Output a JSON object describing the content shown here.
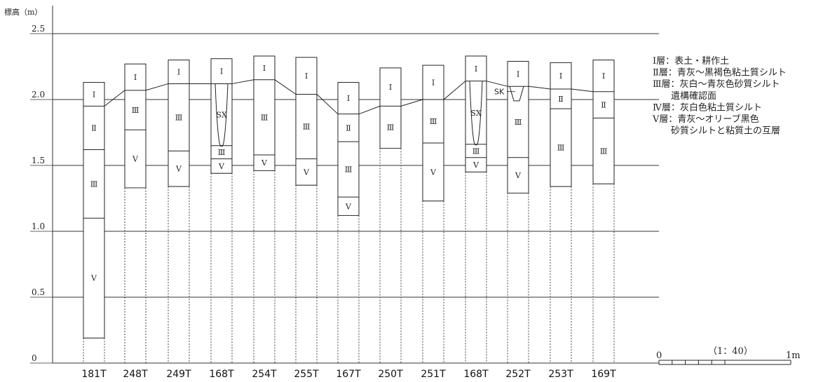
{
  "axis": {
    "label": "標高（m）",
    "ticks": [
      "2.5",
      "2.0",
      "1.5",
      "1.0",
      "0.5",
      "0"
    ]
  },
  "columns": [
    {
      "id": "181T",
      "top": 2.13,
      "bottom": 0.19,
      "layers": [
        {
          "label": "Ⅰ",
          "from": 2.13,
          "to": 1.95
        },
        {
          "label": "Ⅱ",
          "from": 1.95,
          "to": 1.62
        },
        {
          "label": "Ⅲ",
          "from": 1.62,
          "to": 1.1
        },
        {
          "label": "Ⅴ",
          "from": 1.1,
          "to": 0.19
        }
      ]
    },
    {
      "id": "248T",
      "top": 2.27,
      "bottom": 1.33,
      "layers": [
        {
          "label": "Ⅰ",
          "from": 2.27,
          "to": 2.07
        },
        {
          "label": "Ⅲ",
          "from": 2.07,
          "to": 1.77
        },
        {
          "label": "Ⅴ",
          "from": 1.77,
          "to": 1.33
        }
      ]
    },
    {
      "id": "249T",
      "top": 2.3,
      "bottom": 1.34,
      "layers": [
        {
          "label": "Ⅰ",
          "from": 2.3,
          "to": 2.12
        },
        {
          "label": "Ⅲ",
          "from": 2.12,
          "to": 1.61
        },
        {
          "label": "Ⅴ",
          "from": 1.61,
          "to": 1.34
        }
      ]
    },
    {
      "id": "168T",
      "top": 2.31,
      "bottom": 1.44,
      "layers": [
        {
          "label": "Ⅰ",
          "from": 2.31,
          "to": 2.12
        },
        {
          "label": "SX",
          "from": 2.12,
          "to": 1.65
        },
        {
          "label": "Ⅲ",
          "from": 1.65,
          "to": 1.55
        },
        {
          "label": "Ⅴ",
          "from": 1.55,
          "to": 1.44
        }
      ]
    },
    {
      "id": "254T",
      "top": 2.33,
      "bottom": 1.46,
      "layers": [
        {
          "label": "Ⅰ",
          "from": 2.33,
          "to": 2.15
        },
        {
          "label": "Ⅲ",
          "from": 2.15,
          "to": 1.58
        },
        {
          "label": "Ⅴ",
          "from": 1.58,
          "to": 1.46
        }
      ]
    },
    {
      "id": "255T",
      "top": 2.32,
      "bottom": 1.35,
      "layers": [
        {
          "label": "Ⅰ",
          "from": 2.32,
          "to": 2.04
        },
        {
          "label": "Ⅲ",
          "from": 2.04,
          "to": 1.55
        },
        {
          "label": "Ⅴ",
          "from": 1.55,
          "to": 1.35
        }
      ]
    },
    {
      "id": "167T",
      "top": 2.13,
      "bottom": 1.12,
      "layers": [
        {
          "label": "Ⅰ",
          "from": 2.13,
          "to": 1.89
        },
        {
          "label": "Ⅱ",
          "from": 1.89,
          "to": 1.68
        },
        {
          "label": "Ⅲ",
          "from": 1.68,
          "to": 1.26
        },
        {
          "label": "Ⅴ",
          "from": 1.26,
          "to": 1.12
        }
      ]
    },
    {
      "id": "250T",
      "top": 2.24,
      "bottom": 1.63,
      "layers": [
        {
          "label": "Ⅰ",
          "from": 2.24,
          "to": 1.95
        },
        {
          "label": "Ⅲ",
          "from": 1.95,
          "to": 1.63
        }
      ]
    },
    {
      "id": "251T",
      "top": 2.26,
      "bottom": 1.23,
      "layers": [
        {
          "label": "Ⅰ",
          "from": 2.26,
          "to": 2.0
        },
        {
          "label": "Ⅲ",
          "from": 2.0,
          "to": 1.67
        },
        {
          "label": "Ⅴ",
          "from": 1.67,
          "to": 1.23
        }
      ]
    },
    {
      "id": "168T",
      "top": 2.33,
      "bottom": 1.45,
      "layers": [
        {
          "label": "Ⅰ",
          "from": 2.33,
          "to": 2.14
        },
        {
          "label": "SX",
          "from": 2.14,
          "to": 1.66
        },
        {
          "label": "Ⅲ",
          "from": 1.66,
          "to": 1.56
        },
        {
          "label": "Ⅴ",
          "from": 1.56,
          "to": 1.45
        }
      ]
    },
    {
      "id": "252T",
      "top": 2.29,
      "bottom": 1.29,
      "layers": [
        {
          "label": "Ⅰ",
          "from": 2.29,
          "to": 2.1
        },
        {
          "label": "Ⅲ",
          "from": 2.1,
          "to": 1.56
        },
        {
          "label": "Ⅴ",
          "from": 1.56,
          "to": 1.29
        }
      ]
    },
    {
      "id": "253T",
      "top": 2.28,
      "bottom": 1.34,
      "layers": [
        {
          "label": "Ⅰ",
          "from": 2.28,
          "to": 2.08
        },
        {
          "label": "Ⅱ",
          "from": 2.08,
          "to": 1.93
        },
        {
          "label": "Ⅲ",
          "from": 1.93,
          "to": 1.34
        }
      ]
    },
    {
      "id": "169T",
      "top": 2.3,
      "bottom": 1.36,
      "layers": [
        {
          "label": "Ⅰ",
          "from": 2.3,
          "to": 2.06
        },
        {
          "label": "Ⅱ",
          "from": 2.06,
          "to": 1.86
        },
        {
          "label": "Ⅲ",
          "from": 1.86,
          "to": 1.36
        }
      ]
    }
  ],
  "feature_label_sk": "SK",
  "legend": [
    {
      "text": "Ⅰ層：表土・耕作土"
    },
    {
      "text": "Ⅱ層：青灰～黒褐色粘土質シルト"
    },
    {
      "text": "Ⅲ層：灰白～青灰色砂質シルト"
    },
    {
      "text": "遺構確認面"
    },
    {
      "text": "Ⅳ層：灰白色粘土質シルト"
    },
    {
      "text": "Ⅴ層：青灰～オリーブ黒色"
    },
    {
      "text": "砂質シルトと粘質土の互層"
    }
  ],
  "scale": {
    "start": "0",
    "ratio": "（1：40）",
    "end": "1m"
  }
}
